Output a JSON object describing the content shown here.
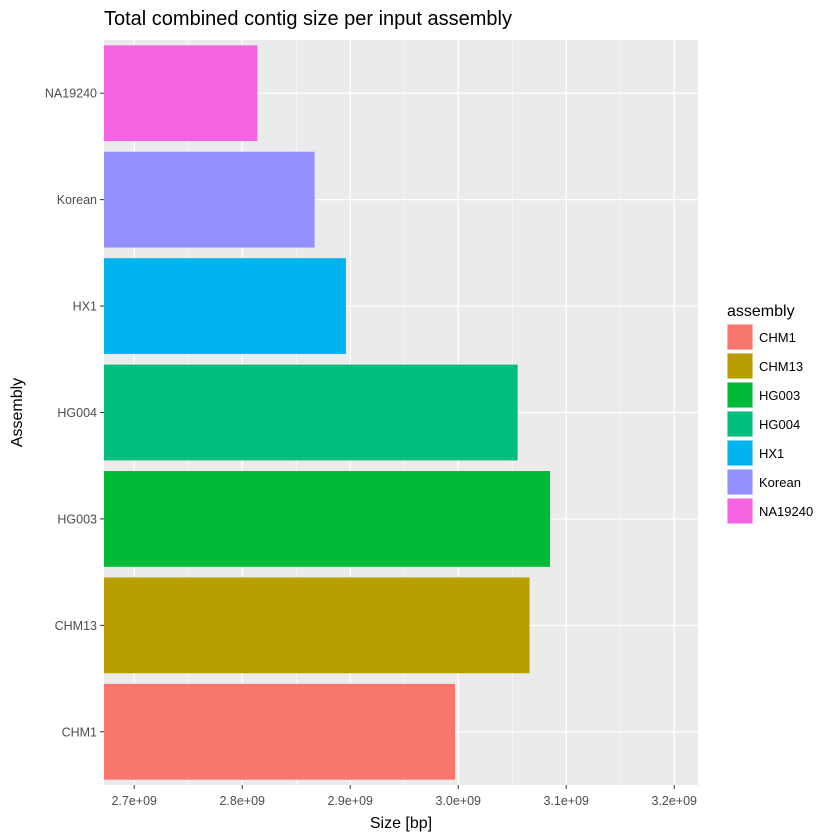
{
  "chart_data": {
    "type": "bar",
    "orientation": "horizontal",
    "title": "Total combined contig size per input assembly",
    "xlabel": "Size [bp]",
    "ylabel": "Assembly",
    "categories": [
      "CHM1",
      "CHM13",
      "HG003",
      "HG004",
      "HX1",
      "Korean",
      "NA19240"
    ],
    "values": [
      2997000000,
      3066000000,
      3085000000,
      3055000000,
      2896000000,
      2867000000,
      2814000000
    ],
    "colors": [
      "#F8766D",
      "#B79F00",
      "#00BA38",
      "#00BF7D",
      "#00B4EF",
      "#9590FF",
      "#F564E3"
    ],
    "xlim": [
      2672000000,
      3222000000
    ],
    "x_ticks": [
      2700000000,
      2800000000,
      2900000000,
      3000000000,
      3100000000,
      3200000000
    ],
    "x_tick_labels": [
      "2.7e+09",
      "2.8e+09",
      "2.9e+09",
      "3.0e+09",
      "3.1e+09",
      "3.2e+09"
    ],
    "grid": true,
    "legend": {
      "title": "assembly",
      "position": "right",
      "entries": [
        "CHM1",
        "CHM13",
        "HG003",
        "HG004",
        "HX1",
        "Korean",
        "NA19240"
      ]
    }
  }
}
